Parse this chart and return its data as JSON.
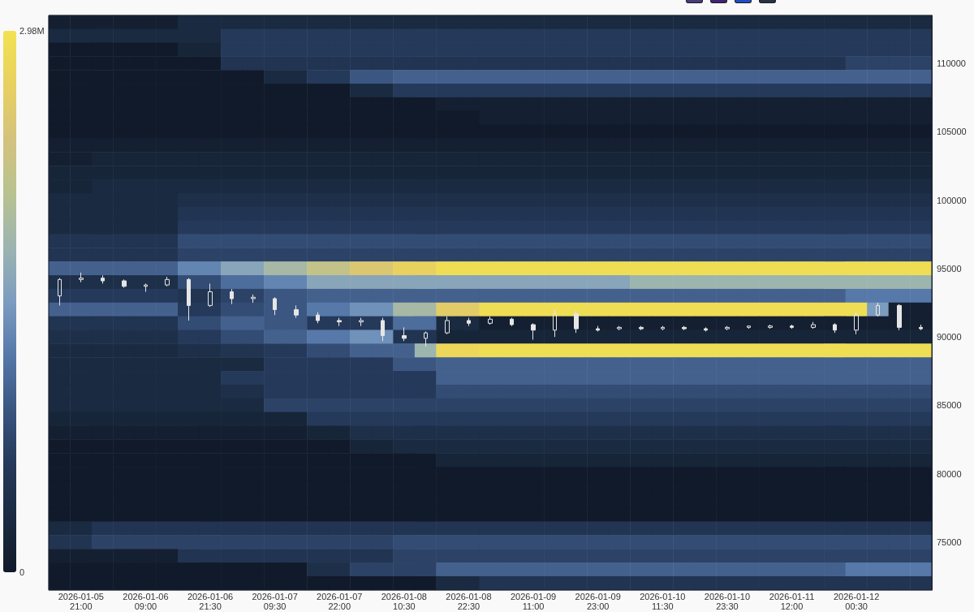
{
  "chart_data": [
    {
      "type": "heatmap",
      "categories": [
        null,
        "2026-01-05 21:00",
        null,
        null,
        "2026-01-06 09:00",
        null,
        null,
        "2026-01-06 21:30",
        null,
        null,
        "2026-01-07 09:30",
        null,
        null,
        "2026-01-07 22:00",
        null,
        null,
        "2026-01-08 10:30",
        null,
        null,
        "2026-01-08 22:30",
        null,
        null,
        "2026-01-09 11:00",
        null,
        null,
        "2026-01-09 23:00",
        null,
        null,
        "2026-01-10 11:30",
        null,
        null,
        "2026-01-10 23:30",
        null,
        null,
        "2026-01-11 12:00",
        null,
        null,
        "2026-01-12 00:30",
        null,
        null,
        null
      ],
      "y_categories": [
        null,
        null,
        null,
        "110000",
        null,
        null,
        null,
        null,
        "105000",
        null,
        null,
        null,
        null,
        "100000",
        null,
        null,
        null,
        null,
        "95000",
        null,
        null,
        null,
        null,
        "90000",
        null,
        null,
        null,
        null,
        "85000",
        null,
        null,
        null,
        null,
        "80000",
        null,
        null,
        null,
        null,
        "75000",
        null,
        null,
        null
      ],
      "cells": [
        [
          0.1,
          0.1,
          0.1,
          0.1,
          0.1,
          0.1,
          0.3,
          0.3,
          0.3,
          0.3,
          0.3,
          0.3,
          0.3,
          0.3,
          0.3,
          0.3,
          0.3,
          0.3,
          0.3,
          0.3,
          0.3,
          0.3,
          0.3,
          0.3,
          0.3,
          0.3,
          0.3,
          0.3,
          0.3,
          0.3,
          0.3,
          0.3,
          0.3,
          0.3,
          0.3,
          0.3,
          0.3,
          0.3,
          0.3,
          0.3,
          0.3
        ],
        [
          0.3,
          0.3,
          0.3,
          0.3,
          0.3,
          0.3,
          0.3,
          0.3,
          0.6,
          0.6,
          0.6,
          0.6,
          0.6,
          0.6,
          0.6,
          0.6,
          0.6,
          0.6,
          0.6,
          0.6,
          0.6,
          0.6,
          0.6,
          0.6,
          0.6,
          0.6,
          0.6,
          0.6,
          0.6,
          0.6,
          0.6,
          0.6,
          0.6,
          0.6,
          0.6,
          0.6,
          0.6,
          0.6,
          0.6,
          0.6,
          0.6
        ],
        [
          0,
          0,
          0,
          0,
          0,
          0,
          0.2,
          0.2,
          0.6,
          0.6,
          0.6,
          0.6,
          0.6,
          0.6,
          0.6,
          0.6,
          0.6,
          0.6,
          0.6,
          0.6,
          0.6,
          0.6,
          0.6,
          0.6,
          0.6,
          0.6,
          0.6,
          0.6,
          0.6,
          0.6,
          0.6,
          0.6,
          0.6,
          0.6,
          0.6,
          0.6,
          0.6,
          0.6,
          0.6,
          0.6,
          0.6
        ],
        [
          0,
          0,
          0,
          0,
          0,
          0,
          0,
          0,
          0.5,
          0.5,
          0.5,
          0.5,
          0.5,
          0.5,
          0.5,
          0.5,
          0.5,
          0.5,
          0.5,
          0.5,
          0.5,
          0.5,
          0.5,
          0.5,
          0.5,
          0.5,
          0.5,
          0.5,
          0.5,
          0.5,
          0.5,
          0.5,
          0.5,
          0.5,
          0.5,
          0.5,
          0.5,
          0.7,
          0.7,
          0.7,
          0.7
        ],
        [
          0,
          0,
          0,
          0,
          0,
          0,
          0,
          0,
          0,
          0,
          0.3,
          0.3,
          0.6,
          0.6,
          0.9,
          0.9,
          1,
          1,
          1,
          1,
          1,
          1,
          1,
          1,
          1,
          1,
          1,
          1,
          1,
          1,
          1,
          1,
          1,
          1,
          1,
          1,
          1,
          1,
          1,
          1,
          1
        ],
        [
          0,
          0,
          0,
          0,
          0,
          0,
          0,
          0,
          0,
          0,
          0,
          0,
          0,
          0,
          0.3,
          0.3,
          0.6,
          0.6,
          0.6,
          0.6,
          0.6,
          0.6,
          0.6,
          0.6,
          0.6,
          0.6,
          0.6,
          0.6,
          0.6,
          0.6,
          0.6,
          0.6,
          0.6,
          0.6,
          0.6,
          0.6,
          0.6,
          0.6,
          0.6,
          0.6,
          0.6
        ],
        [
          0,
          0,
          0,
          0,
          0,
          0,
          0,
          0,
          0,
          0,
          0,
          0,
          0,
          0,
          0,
          0,
          0,
          0,
          0.1,
          0.1,
          0.1,
          0.1,
          0.1,
          0.1,
          0.1,
          0.1,
          0.1,
          0.1,
          0.1,
          0.1,
          0.1,
          0.1,
          0.1,
          0.1,
          0.1,
          0.1,
          0.1,
          0.1,
          0.1,
          0.1,
          0.1
        ],
        [
          0,
          0,
          0,
          0,
          0,
          0,
          0,
          0,
          0,
          0,
          0,
          0,
          0,
          0,
          0,
          0,
          0,
          0,
          0,
          0,
          0.1,
          0.1,
          0.1,
          0.1,
          0.1,
          0.1,
          0.1,
          0.1,
          0.1,
          0.1,
          0.1,
          0.1,
          0.1,
          0.1,
          0.1,
          0.1,
          0.1,
          0.1,
          0.1,
          0.1,
          0.1
        ],
        [
          0,
          0,
          0,
          0,
          0,
          0,
          0,
          0,
          0,
          0,
          0,
          0,
          0,
          0,
          0,
          0,
          0,
          0,
          0,
          0,
          0,
          0,
          0,
          0,
          0,
          0,
          0,
          0,
          0,
          0,
          0,
          0,
          0,
          0,
          0,
          0,
          0,
          0,
          0,
          0,
          0
        ],
        [
          0.1,
          0.1,
          0.1,
          0.1,
          0.1,
          0.1,
          0.1,
          0.1,
          0.1,
          0.1,
          0.1,
          0.1,
          0.1,
          0.1,
          0.1,
          0.1,
          0.1,
          0.1,
          0.1,
          0.1,
          0.1,
          0.1,
          0.1,
          0.1,
          0.1,
          0.1,
          0.1,
          0.1,
          0.1,
          0.1,
          0.1,
          0.1,
          0.1,
          0.1,
          0.1,
          0.1,
          0.1,
          0.1,
          0.1,
          0.1,
          0.1
        ],
        [
          0.1,
          0.1,
          0.2,
          0.2,
          0.2,
          0.2,
          0.2,
          0.2,
          0.2,
          0.2,
          0.2,
          0.2,
          0.2,
          0.2,
          0.2,
          0.2,
          0.2,
          0.2,
          0.2,
          0.2,
          0.2,
          0.2,
          0.2,
          0.2,
          0.2,
          0.2,
          0.2,
          0.2,
          0.2,
          0.2,
          0.2,
          0.2,
          0.2,
          0.2,
          0.2,
          0.2,
          0.2,
          0.2,
          0.2,
          0.2,
          0.2
        ],
        [
          0.2,
          0.2,
          0.2,
          0.2,
          0.2,
          0.2,
          0.2,
          0.2,
          0.2,
          0.2,
          0.2,
          0.2,
          0.2,
          0.2,
          0.2,
          0.2,
          0.2,
          0.2,
          0.2,
          0.2,
          0.2,
          0.2,
          0.2,
          0.2,
          0.2,
          0.2,
          0.2,
          0.2,
          0.2,
          0.2,
          0.2,
          0.2,
          0.2,
          0.2,
          0.2,
          0.2,
          0.2,
          0.2,
          0.2,
          0.2,
          0.2
        ],
        [
          0.2,
          0.2,
          0.3,
          0.3,
          0.3,
          0.3,
          0.3,
          0.3,
          0.3,
          0.3,
          0.3,
          0.3,
          0.3,
          0.3,
          0.3,
          0.3,
          0.3,
          0.3,
          0.3,
          0.3,
          0.3,
          0.3,
          0.3,
          0.3,
          0.3,
          0.3,
          0.3,
          0.3,
          0.3,
          0.3,
          0.3,
          0.3,
          0.3,
          0.3,
          0.3,
          0.3,
          0.3,
          0.3,
          0.3,
          0.3,
          0.3
        ],
        [
          0.3,
          0.3,
          0.3,
          0.3,
          0.3,
          0.3,
          0.4,
          0.4,
          0.4,
          0.4,
          0.4,
          0.4,
          0.4,
          0.4,
          0.4,
          0.4,
          0.4,
          0.4,
          0.4,
          0.4,
          0.4,
          0.4,
          0.4,
          0.4,
          0.4,
          0.4,
          0.4,
          0.4,
          0.4,
          0.4,
          0.4,
          0.4,
          0.4,
          0.4,
          0.4,
          0.4,
          0.4,
          0.4,
          0.4,
          0.4,
          0.4
        ],
        [
          0.3,
          0.3,
          0.3,
          0.3,
          0.3,
          0.3,
          0.5,
          0.5,
          0.5,
          0.5,
          0.5,
          0.5,
          0.5,
          0.5,
          0.5,
          0.5,
          0.5,
          0.5,
          0.5,
          0.5,
          0.5,
          0.5,
          0.5,
          0.5,
          0.5,
          0.5,
          0.5,
          0.5,
          0.5,
          0.5,
          0.5,
          0.5,
          0.5,
          0.5,
          0.5,
          0.5,
          0.5,
          0.5,
          0.5,
          0.5,
          0.5
        ],
        [
          0.3,
          0.3,
          0.3,
          0.3,
          0.3,
          0.3,
          0.6,
          0.6,
          0.6,
          0.6,
          0.6,
          0.6,
          0.6,
          0.6,
          0.6,
          0.6,
          0.6,
          0.6,
          0.6,
          0.6,
          0.6,
          0.6,
          0.6,
          0.6,
          0.6,
          0.6,
          0.6,
          0.6,
          0.6,
          0.6,
          0.6,
          0.6,
          0.6,
          0.6,
          0.6,
          0.6,
          0.6,
          0.6,
          0.6,
          0.6,
          0.6
        ],
        [
          0.5,
          0.5,
          0.5,
          0.5,
          0.5,
          0.5,
          0.8,
          0.8,
          0.8,
          0.8,
          0.8,
          0.8,
          0.8,
          0.8,
          0.8,
          0.8,
          0.8,
          0.8,
          0.8,
          0.8,
          0.8,
          0.8,
          0.8,
          0.8,
          0.8,
          0.8,
          0.8,
          0.8,
          0.8,
          0.8,
          0.8,
          0.8,
          0.8,
          0.8,
          0.8,
          0.8,
          0.8,
          0.8,
          0.8,
          0.8,
          0.8
        ],
        [
          0.5,
          0.5,
          0.5,
          0.5,
          0.5,
          0.5,
          0.7,
          0.7,
          0.7,
          0.7,
          0.7,
          0.7,
          0.7,
          0.7,
          0.7,
          0.7,
          0.7,
          0.7,
          0.7,
          0.7,
          0.7,
          0.7,
          0.7,
          0.7,
          0.7,
          0.7,
          0.7,
          0.7,
          0.7,
          0.7,
          0.7,
          0.7,
          0.7,
          0.7,
          0.7,
          0.7,
          0.7,
          0.7,
          0.7,
          0.7,
          0.7
        ],
        [
          1,
          1,
          1,
          1,
          1,
          1,
          1.3,
          1.3,
          1.6,
          1.6,
          1.9,
          1.9,
          2.2,
          2.2,
          2.5,
          2.5,
          2.7,
          2.7,
          2.9,
          2.9,
          2.9,
          2.9,
          2.9,
          2.9,
          2.9,
          2.9,
          2.9,
          2.9,
          2.9,
          2.9,
          2.9,
          2.9,
          2.9,
          2.9,
          2.9,
          2.9,
          2.9,
          2.9,
          2.9,
          2.9,
          2.9
        ],
        [
          0.4,
          0.4,
          0.4,
          0.4,
          0.4,
          0.4,
          0.8,
          0.8,
          1.1,
          1.1,
          1.3,
          1.3,
          1.6,
          1.6,
          1.6,
          1.6,
          1.6,
          1.6,
          1.6,
          1.6,
          1.6,
          1.6,
          1.6,
          1.6,
          1.6,
          1.6,
          1.6,
          1.8,
          1.8,
          1.8,
          1.8,
          1.8,
          1.8,
          1.8,
          1.8,
          1.8,
          1.8,
          1.8,
          1.8,
          1.8,
          1.8
        ],
        [
          0.6,
          0.6,
          0.6,
          0.6,
          0.6,
          0.6,
          0.5,
          0.5,
          0.7,
          0.7,
          0.9,
          0.9,
          1,
          1,
          1,
          1,
          1,
          1,
          1,
          1,
          1,
          1,
          1,
          1,
          1,
          1,
          1,
          1,
          1,
          1,
          1,
          1,
          1,
          1,
          1,
          1,
          1,
          1.2,
          1.2,
          1.2,
          1.2
        ],
        [
          1,
          1,
          1,
          1,
          1,
          1,
          0.6,
          0.6,
          0.8,
          0.8,
          0.9,
          0.9,
          1.2,
          1.2,
          1.4,
          1.4,
          1.9,
          1.9,
          2.6,
          2.6,
          2.9,
          2.9,
          2.9,
          2.9,
          2.9,
          2.9,
          2.9,
          2.9,
          2.9,
          2.9,
          2.9,
          2.9,
          2.9,
          2.9,
          2.9,
          2.9,
          2.9,
          2.9,
          1.5,
          0.1,
          0.1
        ],
        [
          0.5,
          0.5,
          0.5,
          0.5,
          0.5,
          0.5,
          0.8,
          0.8,
          1,
          1,
          0.9,
          0.9,
          0.6,
          0.6,
          0.6,
          0.6,
          1.1,
          1.1,
          0.3,
          0.3,
          0.1,
          0.1,
          0.1,
          0.1,
          0.1,
          0.1,
          0.1,
          0.1,
          0.1,
          0.1,
          0.1,
          0.1,
          0.1,
          0.1,
          0.1,
          0.1,
          0.1,
          0.1,
          0.1,
          0.1,
          0.1
        ],
        [
          0.4,
          0.4,
          0.4,
          0.4,
          0.4,
          0.4,
          0.6,
          0.6,
          0.8,
          0.8,
          1,
          1,
          1.2,
          1.2,
          1.4,
          1.4,
          0.5,
          0.5,
          0.2,
          0.2,
          0.2,
          0.2,
          0.2,
          0.2,
          0.2,
          0.2,
          0.2,
          0.2,
          0.2,
          0.2,
          0.2,
          0.2,
          0.2,
          0.2,
          0.2,
          0.2,
          0.2,
          0.2,
          0.2,
          0.2,
          0.2
        ],
        [
          0.3,
          0.3,
          0.3,
          0.3,
          0.3,
          0.3,
          0.4,
          0.4,
          0.5,
          0.5,
          0.6,
          0.6,
          0.8,
          0.8,
          1,
          1,
          1,
          1.8,
          2.8,
          2.8,
          2.9,
          2.9,
          2.9,
          2.9,
          2.9,
          2.9,
          2.9,
          2.9,
          2.9,
          2.9,
          2.9,
          2.9,
          2.9,
          2.9,
          2.9,
          2.9,
          2.9,
          2.9,
          2.9,
          2.9,
          2.9
        ],
        [
          0.3,
          0.3,
          0.3,
          0.3,
          0.3,
          0.3,
          0.3,
          0.3,
          0.3,
          0.3,
          0.6,
          0.6,
          0.6,
          0.6,
          0.6,
          0.6,
          0.9,
          0.9,
          1,
          1,
          1,
          1,
          1,
          1,
          1,
          1,
          1,
          1,
          1,
          1,
          1,
          1,
          1,
          1,
          1,
          1,
          1,
          1,
          1,
          1,
          1
        ],
        [
          0.3,
          0.3,
          0.3,
          0.3,
          0.3,
          0.3,
          0.3,
          0.3,
          0.6,
          0.6,
          0.6,
          0.6,
          0.6,
          0.6,
          0.6,
          0.6,
          0.6,
          0.6,
          1,
          1,
          1,
          1,
          1,
          1,
          1,
          1,
          1,
          1,
          1,
          1,
          1,
          1,
          1,
          1,
          1,
          1,
          1,
          1,
          1,
          1,
          1
        ],
        [
          0.3,
          0.3,
          0.3,
          0.3,
          0.3,
          0.3,
          0.3,
          0.3,
          0.4,
          0.4,
          0.6,
          0.6,
          0.6,
          0.6,
          0.6,
          0.6,
          0.6,
          0.6,
          0.8,
          0.8,
          0.8,
          0.8,
          0.8,
          0.8,
          0.8,
          0.8,
          0.8,
          0.8,
          0.8,
          0.8,
          0.8,
          0.8,
          0.8,
          0.8,
          0.8,
          0.8,
          0.8,
          0.8,
          0.8,
          0.8,
          0.8
        ],
        [
          0.3,
          0.3,
          0.3,
          0.3,
          0.3,
          0.3,
          0.3,
          0.3,
          0.3,
          0.3,
          0.7,
          0.7,
          0.7,
          0.7,
          0.7,
          0.7,
          0.7,
          0.7,
          0.7,
          0.7,
          0.7,
          0.7,
          0.7,
          0.7,
          0.7,
          0.7,
          0.7,
          0.7,
          0.7,
          0.7,
          0.7,
          0.7,
          0.7,
          0.7,
          0.7,
          0.7,
          0.7,
          0.7,
          0.7,
          0.7,
          0.7
        ],
        [
          0.2,
          0.2,
          0.2,
          0.2,
          0.2,
          0.2,
          0.2,
          0.2,
          0.2,
          0.2,
          0.2,
          0.2,
          0.6,
          0.6,
          0.6,
          0.6,
          0.6,
          0.6,
          0.6,
          0.6,
          0.6,
          0.6,
          0.6,
          0.6,
          0.6,
          0.6,
          0.6,
          0.6,
          0.6,
          0.6,
          0.6,
          0.6,
          0.6,
          0.6,
          0.6,
          0.6,
          0.6,
          0.6,
          0.6,
          0.6,
          0.6
        ],
        [
          0.1,
          0.1,
          0.1,
          0.1,
          0.1,
          0.1,
          0.1,
          0.1,
          0.1,
          0.1,
          0.1,
          0.1,
          0.2,
          0.2,
          0.4,
          0.4,
          0.4,
          0.4,
          0.4,
          0.4,
          0.4,
          0.4,
          0.4,
          0.4,
          0.4,
          0.4,
          0.4,
          0.4,
          0.4,
          0.4,
          0.4,
          0.4,
          0.4,
          0.4,
          0.4,
          0.4,
          0.4,
          0.4,
          0.4,
          0.4,
          0.4
        ],
        [
          0,
          0,
          0,
          0,
          0,
          0,
          0,
          0,
          0,
          0,
          0,
          0,
          0,
          0,
          0.2,
          0.2,
          0.3,
          0.3,
          0.3,
          0.3,
          0.3,
          0.3,
          0.3,
          0.3,
          0.3,
          0.3,
          0.3,
          0.3,
          0.3,
          0.3,
          0.3,
          0.3,
          0.3,
          0.3,
          0.3,
          0.3,
          0.3,
          0.3,
          0.3,
          0.3,
          0.3
        ],
        [
          0,
          0,
          0,
          0,
          0,
          0,
          0,
          0,
          0,
          0,
          0,
          0,
          0,
          0,
          0,
          0,
          0,
          0,
          0.2,
          0.2,
          0.2,
          0.2,
          0.2,
          0.2,
          0.2,
          0.2,
          0.2,
          0.2,
          0.2,
          0.2,
          0.2,
          0.2,
          0.2,
          0.2,
          0.2,
          0.2,
          0.2,
          0.2,
          0.2,
          0.2,
          0.2
        ],
        [
          0,
          0,
          0,
          0,
          0,
          0,
          0,
          0,
          0,
          0,
          0,
          0,
          0,
          0,
          0,
          0,
          0,
          0,
          0,
          0,
          0,
          0,
          0,
          0,
          0,
          0,
          0,
          0,
          0,
          0,
          0,
          0,
          0,
          0,
          0,
          0,
          0,
          0,
          0,
          0,
          0
        ],
        [
          0,
          0,
          0,
          0,
          0,
          0,
          0,
          0,
          0,
          0,
          0,
          0,
          0,
          0,
          0,
          0,
          0,
          0,
          0,
          0,
          0,
          0,
          0,
          0,
          0,
          0,
          0,
          0,
          0,
          0,
          0,
          0,
          0,
          0,
          0,
          0,
          0,
          0,
          0,
          0,
          0
        ],
        [
          0,
          0,
          0,
          0,
          0,
          0,
          0,
          0,
          0,
          0,
          0,
          0,
          0,
          0,
          0,
          0,
          0,
          0,
          0,
          0,
          0,
          0,
          0,
          0,
          0,
          0,
          0,
          0,
          0,
          0,
          0,
          0,
          0,
          0,
          0,
          0,
          0,
          0,
          0,
          0,
          0
        ],
        [
          0,
          0,
          0,
          0,
          0,
          0,
          0,
          0,
          0,
          0,
          0,
          0,
          0,
          0,
          0,
          0,
          0,
          0,
          0,
          0,
          0,
          0,
          0,
          0,
          0,
          0,
          0,
          0,
          0,
          0,
          0,
          0,
          0,
          0,
          0,
          0,
          0,
          0,
          0,
          0,
          0
        ],
        [
          0.3,
          0.3,
          0.5,
          0.5,
          0.5,
          0.5,
          0.5,
          0.5,
          0.5,
          0.5,
          0.5,
          0.5,
          0.5,
          0.5,
          0.5,
          0.5,
          0.5,
          0.5,
          0.5,
          0.5,
          0.5,
          0.5,
          0.5,
          0.5,
          0.5,
          0.5,
          0.5,
          0.5,
          0.5,
          0.5,
          0.5,
          0.5,
          0.5,
          0.5,
          0.5,
          0.5,
          0.5,
          0.5,
          0.5,
          0.5,
          0.5
        ],
        [
          0.5,
          0.5,
          0.7,
          0.7,
          0.7,
          0.7,
          0.7,
          0.7,
          0.7,
          0.7,
          0.7,
          0.7,
          0.7,
          0.7,
          0.7,
          0.7,
          0.8,
          0.8,
          0.8,
          0.8,
          0.8,
          0.8,
          0.8,
          0.8,
          0.8,
          0.8,
          0.8,
          0.8,
          0.8,
          0.8,
          0.8,
          0.8,
          0.8,
          0.8,
          0.8,
          0.8,
          0.8,
          0.8,
          0.8,
          0.8,
          0.8
        ],
        [
          0.1,
          0.1,
          0.1,
          0.1,
          0.1,
          0.1,
          0.5,
          0.5,
          0.5,
          0.5,
          0.5,
          0.5,
          0.5,
          0.5,
          0.5,
          0.5,
          0.7,
          0.7,
          0.7,
          0.7,
          0.7,
          0.7,
          0.7,
          0.7,
          0.7,
          0.7,
          0.7,
          0.7,
          0.7,
          0.7,
          0.7,
          0.7,
          0.7,
          0.7,
          0.7,
          0.7,
          0.7,
          0.7,
          0.7,
          0.7,
          0.7
        ],
        [
          0,
          0,
          0,
          0,
          0,
          0,
          0,
          0,
          0,
          0,
          0,
          0,
          0.4,
          0.4,
          0.7,
          0.7,
          0.7,
          0.7,
          1,
          1,
          1,
          1,
          1,
          1,
          1,
          1,
          1,
          1,
          1,
          1,
          1,
          1,
          1,
          1,
          1,
          1,
          1,
          1.2,
          1.2,
          1.2,
          1.2
        ],
        [
          0,
          0,
          0,
          0,
          0,
          0,
          0,
          0,
          0,
          0,
          0,
          0,
          0,
          0,
          0,
          0,
          0,
          0,
          0.3,
          0.3,
          0.5,
          0.5,
          0.5,
          0.5,
          0.5,
          0.5,
          0.5,
          0.5,
          0.5,
          0.5,
          0.5,
          0.5,
          0.5,
          0.5,
          0.5,
          0.5,
          0.5,
          0.5,
          0.5,
          0.5,
          0.5
        ]
      ],
      "clim": [
        0,
        2.98
      ],
      "cticks": [
        0,
        {
          "value": 2.98,
          "label": "2.98M"
        }
      ],
      "tick_labels": "x"
    },
    {
      "type": "candlestick",
      "categories": [
        null,
        "2026-01-05 21:00",
        null,
        null,
        "2026-01-06 09:00",
        null,
        null,
        "2026-01-06 21:30",
        null,
        null,
        "2026-01-07 09:30",
        null,
        null,
        "2026-01-07 22:00",
        null,
        null,
        "2026-01-08 10:30",
        null,
        null,
        "2026-01-08 22:30",
        null,
        null,
        "2026-01-09 11:00",
        null,
        null,
        "2026-01-09 23:00",
        null,
        null,
        "2026-01-10 11:30",
        null,
        null,
        "2026-01-10 23:30",
        null,
        null,
        "2026-01-11 12:00",
        null,
        null,
        "2026-01-12 00:30",
        null,
        null,
        null
      ],
      "color": "#e6e6e6",
      "ohlc": [
        [
          93000,
          94300,
          92300,
          94200
        ],
        [
          94200,
          94700,
          94000,
          94300
        ],
        [
          94300,
          94500,
          93900,
          94100
        ],
        [
          94100,
          94200,
          93600,
          93700
        ],
        [
          93700,
          93900,
          93300,
          93800
        ],
        [
          93800,
          94400,
          93700,
          94200
        ],
        [
          94200,
          94300,
          91200,
          92300
        ],
        [
          92300,
          93900,
          92200,
          93300
        ],
        [
          93300,
          93500,
          92400,
          92800
        ],
        [
          92800,
          93100,
          92500,
          92900
        ],
        [
          92800,
          92900,
          91600,
          92000
        ],
        [
          92000,
          92300,
          91400,
          91600
        ],
        [
          91600,
          91800,
          91000,
          91200
        ],
        [
          91200,
          91400,
          90800,
          91100
        ],
        [
          91100,
          91400,
          90800,
          91200
        ],
        [
          91200,
          91400,
          89700,
          90100
        ],
        [
          90100,
          90700,
          89700,
          89900
        ],
        [
          89900,
          90400,
          89300,
          90300
        ],
        [
          90300,
          91500,
          90200,
          91200
        ],
        [
          91200,
          91400,
          90800,
          91000
        ],
        [
          91000,
          91500,
          90900,
          91300
        ],
        [
          91300,
          91400,
          90800,
          90900
        ],
        [
          90900,
          91000,
          89800,
          90500
        ],
        [
          90500,
          92000,
          90000,
          91700
        ],
        [
          91700,
          91900,
          90300,
          90600
        ],
        [
          90600,
          90800,
          90400,
          90500
        ],
        [
          90600,
          90800,
          90500,
          90700
        ],
        [
          90700,
          90800,
          90500,
          90600
        ],
        [
          90600,
          90800,
          90500,
          90700
        ],
        [
          90700,
          90800,
          90500,
          90600
        ],
        [
          90600,
          90700,
          90400,
          90500
        ],
        [
          90600,
          90800,
          90500,
          90700
        ],
        [
          90700,
          90800,
          90600,
          90800
        ],
        [
          90700,
          90900,
          90600,
          90800
        ],
        [
          90800,
          90900,
          90600,
          90700
        ],
        [
          90700,
          91100,
          90600,
          90900
        ],
        [
          90900,
          91000,
          90300,
          90500
        ],
        [
          90500,
          91800,
          90200,
          91600
        ],
        [
          91600,
          92500,
          91500,
          92300
        ],
        [
          92300,
          92400,
          90500,
          90700
        ],
        [
          90700,
          90900,
          90500,
          90600
        ]
      ],
      "ylim": [
        71500,
        113500
      ],
      "yticks": [
        75000,
        80000,
        85000,
        90000,
        95000,
        100000,
        105000,
        110000
      ],
      "tick_labels": "y"
    }
  ]
}
